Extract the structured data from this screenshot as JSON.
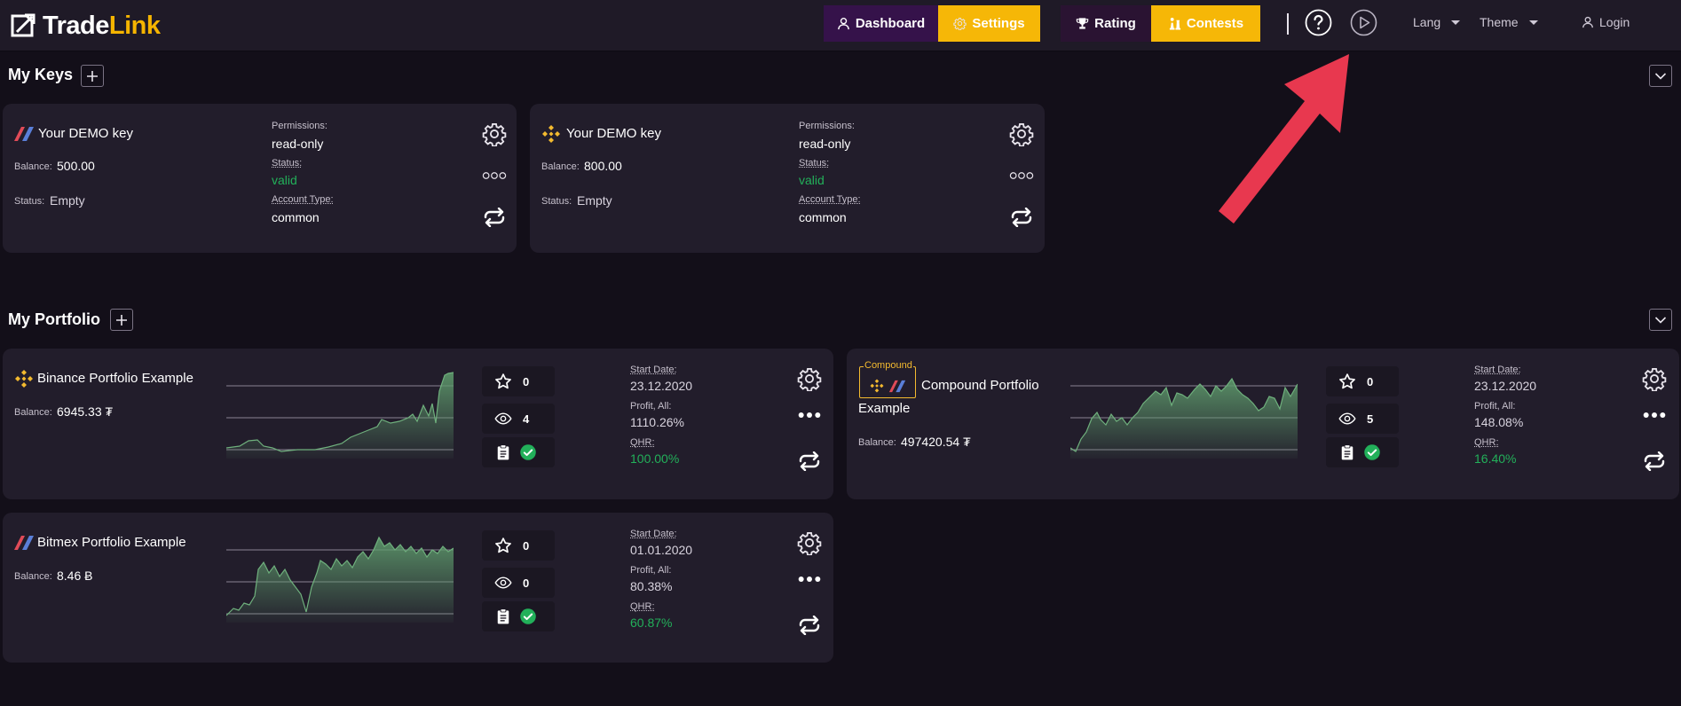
{
  "header": {
    "logo": {
      "part1": "Trade",
      "part2": "Link"
    },
    "nav": {
      "dashboard": "Dashboard",
      "settings": "Settings",
      "rating": "Rating",
      "contests": "Contests",
      "lang": "Lang",
      "theme": "Theme",
      "login": "Login"
    }
  },
  "keys_section": {
    "title": "My Keys",
    "keys": [
      {
        "name": "Your DEMO key",
        "exchange_icon": "bitmex-icon",
        "balance_label": "Balance:",
        "balance": "500.00",
        "status_label": "Status:",
        "status": "Empty",
        "permissions_label": "Permissions:",
        "permissions": "read-only",
        "status2_label": "Status:",
        "status2": "valid",
        "account_type_label": "Account Type:",
        "account_type": "common"
      },
      {
        "name": "Your DEMO key",
        "exchange_icon": "binance-icon",
        "balance_label": "Balance:",
        "balance": "800.00",
        "status_label": "Status:",
        "status": "Empty",
        "permissions_label": "Permissions:",
        "permissions": "read-only",
        "status2_label": "Status:",
        "status2": "valid",
        "account_type_label": "Account Type:",
        "account_type": "common"
      }
    ]
  },
  "portfolio_section": {
    "title": "My Portfolio",
    "portfolios": [
      {
        "name": "Binance Portfolio Example",
        "exchange_icon": "binance-icon",
        "balance_label": "Balance:",
        "balance": "6945.33 ₮",
        "stars": "0",
        "views": "4",
        "start_date_label": "Start Date:",
        "start_date": "23.12.2020",
        "profit_label": "Profit, All:",
        "profit": "1110.26%",
        "qhr_label": "QHR:",
        "qhr": "100.00%"
      },
      {
        "name_line1": "Compound Portfolio",
        "name_line2": "Example",
        "badge": "Compound",
        "balance_label": "Balance:",
        "balance": "497420.54 ₮",
        "stars": "0",
        "views": "5",
        "start_date_label": "Start Date:",
        "start_date": "23.12.2020",
        "profit_label": "Profit, All:",
        "profit": "148.08%",
        "qhr_label": "QHR:",
        "qhr": "16.40%"
      },
      {
        "name": "Bitmex Portfolio Example",
        "exchange_icon": "bitmex-icon",
        "balance_label": "Balance:",
        "balance": "8.46 Ƀ",
        "stars": "0",
        "views": "0",
        "start_date_label": "Start Date:",
        "start_date": "01.01.2020",
        "profit_label": "Profit, All:",
        "profit": "80.38%",
        "qhr_label": "QHR:",
        "qhr": "60.87%"
      }
    ]
  },
  "colors": {
    "accent_yellow": "#f6b707",
    "dark_purple": "#35124a",
    "valid_green": "#22b05a",
    "annotation_arrow": "#e8384f"
  }
}
